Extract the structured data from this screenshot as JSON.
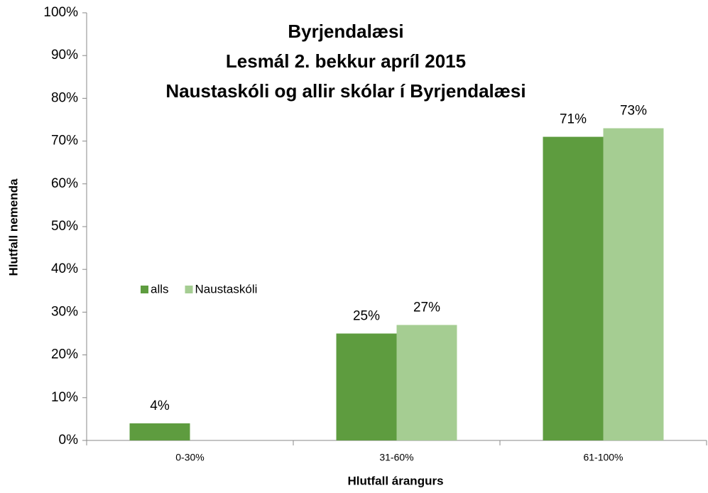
{
  "chart_data": {
    "type": "bar",
    "title": [
      "Byrjendalæsi",
      "Lesmál 2. bekkur apríl 2015",
      "Naustaskóli og allir skólar í Byrjendalæsi"
    ],
    "x_label": "Hlutfall árangurs",
    "y_label": "Hlutfall nemenda",
    "categories": [
      "0-30%",
      "31-60%",
      "61-100%"
    ],
    "series": [
      {
        "name": "alls",
        "color": "#5e9c3f",
        "values": [
          4,
          25,
          71
        ],
        "value_labels": [
          "4%",
          "25%",
          "71%"
        ]
      },
      {
        "name": "Naustaskóli",
        "color": "#a5cd92",
        "values": [
          null,
          27,
          73
        ],
        "value_labels": [
          null,
          "27%",
          "73%"
        ]
      }
    ],
    "ylim": [
      0,
      100
    ],
    "yticks": [
      {
        "value": 0,
        "label": "0%"
      },
      {
        "value": 10,
        "label": "10%"
      },
      {
        "value": 20,
        "label": "20%"
      },
      {
        "value": 30,
        "label": "30%"
      },
      {
        "value": 40,
        "label": "40%"
      },
      {
        "value": 50,
        "label": "50%"
      },
      {
        "value": 60,
        "label": "60%"
      },
      {
        "value": 70,
        "label": "70%"
      },
      {
        "value": 80,
        "label": "80%"
      },
      {
        "value": 90,
        "label": "90%"
      },
      {
        "value": 100,
        "label": "100%"
      }
    ],
    "grid": false
  }
}
